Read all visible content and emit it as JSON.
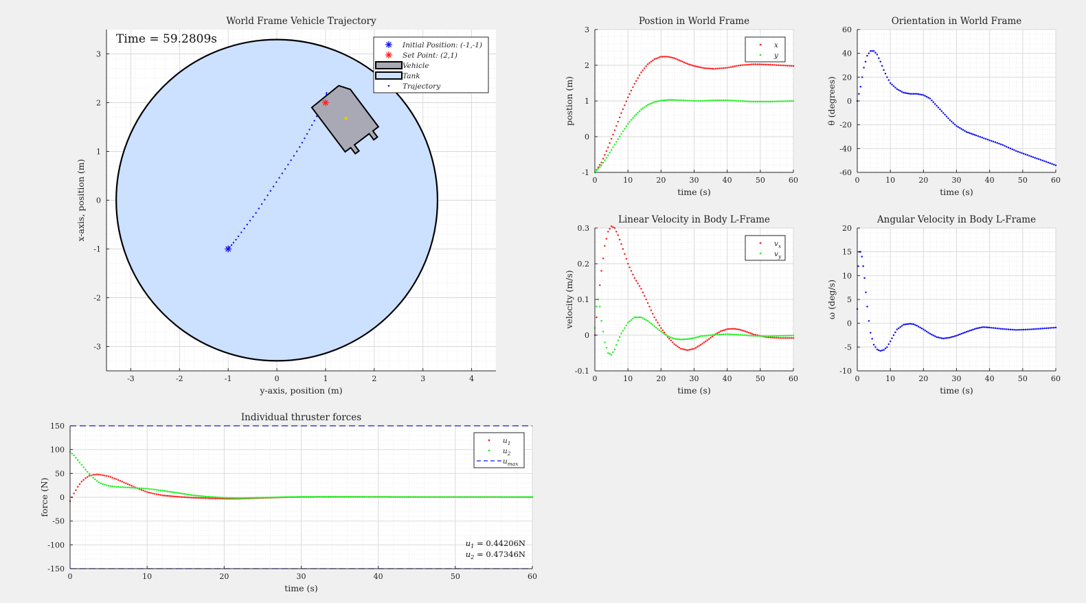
{
  "colors": {
    "figure_bg": "#f0f0f0",
    "axes_bg": "#ffffff",
    "grid_major": "#d7d7d7",
    "grid_minor": "#ebebeb",
    "tank_fill": "#cce0ff",
    "vehicle_fill": "#a9a9b6",
    "red": "#ff1e1e",
    "green": "#22ee22",
    "blue": "#1111ee",
    "setpoint_marker": "#e6c800"
  },
  "chart_data": [
    {
      "id": "trajectory",
      "type": "scatter",
      "title": "World Frame Vehicle Trajectory",
      "xlabel": "y-axis, position (m)",
      "ylabel": "x-axis, position (m)",
      "xlim": [
        -3.5,
        4.5
      ],
      "ylim": [
        -3.5,
        3.5
      ],
      "xticks": [
        -3,
        -2,
        -1,
        0,
        1,
        2,
        3,
        4
      ],
      "yticks": [
        -3,
        -2,
        -1,
        0,
        1,
        2,
        3
      ],
      "grid": true,
      "time_annotation": "Time = 59.2809s",
      "tank": {
        "center": [
          0,
          0
        ],
        "radius": 3.3
      },
      "initial_position": [
        -1,
        -1
      ],
      "set_point": [
        1,
        2
      ],
      "trajectory": {
        "x": [
          -1.0,
          -0.97,
          -0.93,
          -0.89,
          -0.84,
          -0.79,
          -0.73,
          -0.67,
          -0.61,
          -0.55,
          -0.49,
          -0.43,
          -0.37,
          -0.31,
          -0.25,
          -0.19,
          -0.13,
          -0.07,
          -0.01,
          0.05,
          0.11,
          0.17,
          0.23,
          0.29,
          0.35,
          0.41,
          0.47,
          0.52,
          0.57,
          0.62,
          0.67,
          0.72,
          0.77,
          0.82,
          0.87,
          0.92,
          0.96,
          0.99,
          1.01,
          1.02,
          1.02,
          1.01,
          1.0
        ],
        "y": [
          -1.0,
          -0.96,
          -0.92,
          -0.87,
          -0.81,
          -0.74,
          -0.66,
          -0.58,
          -0.5,
          -0.42,
          -0.34,
          -0.26,
          -0.17,
          -0.08,
          0.01,
          0.1,
          0.19,
          0.28,
          0.37,
          0.46,
          0.55,
          0.64,
          0.73,
          0.82,
          0.91,
          1.0,
          1.09,
          1.18,
          1.27,
          1.36,
          1.45,
          1.54,
          1.63,
          1.72,
          1.81,
          1.9,
          1.98,
          2.05,
          2.12,
          2.17,
          2.2,
          2.1,
          2.0
        ]
      },
      "vehicle": {
        "center": [
          1.42,
          1.68
        ],
        "heading_deg": -53,
        "length": 1.2,
        "width": 0.95
      },
      "legend": {
        "placement": "top-right",
        "entries": [
          "Initial Position: (-1,-1)",
          "Set Point: (2,1)",
          "Vehicle",
          "Tank",
          "Trajectory"
        ]
      }
    },
    {
      "id": "position",
      "type": "scatter",
      "title": "Postion in World Frame",
      "xlabel": "time (s)",
      "ylabel": "postion (m)",
      "xlim": [
        0,
        60
      ],
      "ylim": [
        -1,
        3
      ],
      "xticks": [
        0,
        10,
        20,
        30,
        40,
        50,
        60
      ],
      "yticks": [
        -1,
        0,
        1,
        2,
        3
      ],
      "grid": true,
      "legend": {
        "placement": "top-right"
      },
      "series": [
        {
          "name": "x",
          "color": "red",
          "t": [
            0,
            2,
            4,
            6,
            8,
            10,
            12,
            14,
            16,
            18,
            20,
            22,
            24,
            26,
            28,
            30,
            33,
            36,
            40,
            44,
            48,
            52,
            56,
            60
          ],
          "v": [
            -1.0,
            -0.72,
            -0.3,
            0.18,
            0.66,
            1.1,
            1.48,
            1.8,
            2.03,
            2.17,
            2.24,
            2.24,
            2.2,
            2.12,
            2.04,
            1.98,
            1.92,
            1.9,
            1.93,
            2.0,
            2.03,
            2.02,
            2.0,
            1.98
          ]
        },
        {
          "name": "y",
          "color": "green",
          "t": [
            0,
            2,
            4,
            6,
            8,
            10,
            12,
            14,
            16,
            18,
            20,
            22,
            24,
            28,
            32,
            36,
            40,
            44,
            48,
            52,
            56,
            60
          ],
          "v": [
            -1.0,
            -0.8,
            -0.52,
            -0.22,
            0.08,
            0.36,
            0.58,
            0.76,
            0.89,
            0.97,
            1.01,
            1.03,
            1.03,
            1.01,
            1.0,
            1.02,
            1.02,
            1.0,
            0.98,
            0.98,
            0.99,
            1.0
          ]
        }
      ]
    },
    {
      "id": "orientation",
      "type": "scatter",
      "title": "Orientation in World Frame",
      "xlabel": "time (s)",
      "ylabel": "θ (degrees)",
      "xlim": [
        0,
        60
      ],
      "ylim": [
        -60,
        60
      ],
      "xticks": [
        0,
        10,
        20,
        30,
        40,
        50,
        60
      ],
      "yticks": [
        -60,
        -40,
        -20,
        0,
        20,
        40,
        60
      ],
      "grid": true,
      "series": [
        {
          "name": "",
          "color": "blue",
          "t": [
            0,
            1,
            2,
            3,
            4,
            5,
            6,
            7,
            8,
            9,
            10,
            12,
            14,
            16,
            18,
            20,
            22,
            24,
            26,
            28,
            30,
            33,
            36,
            40,
            44,
            48,
            52,
            56,
            60
          ],
          "v": [
            0,
            12,
            28,
            38,
            42,
            42,
            39,
            33,
            26,
            20,
            15,
            10,
            7,
            6,
            6,
            5,
            2,
            -4,
            -10,
            -16,
            -21,
            -26,
            -29,
            -33,
            -37,
            -42,
            -46,
            -50,
            -54
          ]
        }
      ]
    },
    {
      "id": "linear_velocity",
      "type": "scatter",
      "title": "Linear Velocity in Body L-Frame",
      "xlabel": "time (s)",
      "ylabel": "velocity (m/s)",
      "xlim": [
        0,
        60
      ],
      "ylim": [
        -0.1,
        0.3
      ],
      "xticks": [
        0,
        10,
        20,
        30,
        40,
        50,
        60
      ],
      "yticks": [
        -0.1,
        0,
        0.1,
        0.2,
        0.3
      ],
      "grid": true,
      "legend": {
        "placement": "top-right"
      },
      "series": [
        {
          "name": "v_x",
          "color": "red",
          "t": [
            0,
            1,
            2,
            3,
            4,
            5,
            6,
            7,
            8,
            10,
            12,
            14,
            16,
            18,
            20,
            22,
            24,
            26,
            28,
            30,
            32,
            34,
            36,
            38,
            40,
            42,
            44,
            46,
            48,
            52,
            56,
            60
          ],
          "v": [
            0,
            0.1,
            0.18,
            0.25,
            0.29,
            0.305,
            0.3,
            0.28,
            0.255,
            0.2,
            0.16,
            0.13,
            0.09,
            0.05,
            0.02,
            -0.005,
            -0.025,
            -0.038,
            -0.042,
            -0.038,
            -0.027,
            -0.014,
            0.0,
            0.011,
            0.017,
            0.018,
            0.015,
            0.009,
            0.002,
            -0.006,
            -0.008,
            -0.008
          ]
        },
        {
          "name": "v_y",
          "color": "green",
          "t": [
            0,
            0.5,
            1,
            1.5,
            2,
            3,
            4,
            5,
            6,
            7,
            8,
            10,
            12,
            14,
            16,
            18,
            20,
            22,
            24,
            26,
            28,
            30,
            32,
            36,
            40,
            44,
            48,
            52,
            56,
            60
          ],
          "v": [
            0.02,
            0.08,
            0.1,
            0.08,
            0.04,
            -0.02,
            -0.05,
            -0.055,
            -0.04,
            -0.015,
            0.005,
            0.035,
            0.05,
            0.05,
            0.04,
            0.025,
            0.01,
            -0.003,
            -0.01,
            -0.012,
            -0.011,
            -0.008,
            -0.003,
            0.001,
            0.003,
            0.001,
            -0.002,
            -0.003,
            -0.002,
            -0.001
          ]
        }
      ]
    },
    {
      "id": "angular_velocity",
      "type": "scatter",
      "title": "Angular Velocity in Body L-Frame",
      "xlabel": "time (s)",
      "ylabel": "ω (deg/s)",
      "xlim": [
        0,
        60
      ],
      "ylim": [
        -10,
        20
      ],
      "xticks": [
        0,
        10,
        20,
        30,
        40,
        50,
        60
      ],
      "yticks": [
        -10,
        -5,
        0,
        5,
        10,
        15,
        20
      ],
      "grid": true,
      "series": [
        {
          "name": "",
          "color": "blue",
          "t": [
            0,
            0.3,
            0.6,
            1,
            1.4,
            1.8,
            2.2,
            2.6,
            3,
            3.5,
            4,
            5,
            6,
            7,
            8,
            9,
            10,
            11,
            12,
            14,
            16,
            17,
            18,
            20,
            22,
            24,
            26,
            28,
            30,
            33,
            36,
            38,
            40,
            44,
            48,
            52,
            56,
            60
          ],
          "v": [
            3,
            12,
            15,
            15,
            14,
            12,
            9.5,
            6.5,
            3.5,
            0.5,
            -2,
            -4.5,
            -5.5,
            -5.8,
            -5.6,
            -5,
            -3.8,
            -2.5,
            -1.3,
            -0.3,
            -0.1,
            -0.2,
            -0.5,
            -1.3,
            -2.2,
            -2.9,
            -3.2,
            -3,
            -2.6,
            -1.8,
            -1.1,
            -0.8,
            -0.9,
            -1.2,
            -1.4,
            -1.3,
            -1.1,
            -0.9
          ]
        }
      ]
    },
    {
      "id": "thruster_forces",
      "type": "scatter",
      "title": "Individual thruster forces",
      "xlabel": "time (s)",
      "ylabel": "force (N)",
      "xlim": [
        0,
        60
      ],
      "ylim": [
        -150,
        150
      ],
      "xticks": [
        0,
        10,
        20,
        30,
        40,
        50,
        60
      ],
      "yticks": [
        -150,
        -100,
        -50,
        0,
        50,
        100,
        150
      ],
      "grid": true,
      "legend": {
        "placement": "top-right"
      },
      "u_max": 150,
      "annotations": [
        "u_1 = 0.44206N",
        "u_2 = 0.47346N"
      ],
      "series": [
        {
          "name": "u_1",
          "color": "red",
          "t": [
            0,
            0.5,
            1,
            1.5,
            2,
            2.5,
            3,
            3.5,
            4,
            5,
            6,
            7,
            8,
            9,
            10,
            11,
            12,
            14,
            16,
            18,
            20,
            22,
            24,
            26,
            28,
            30,
            34,
            38,
            42,
            46,
            50,
            54,
            58,
            60
          ],
          "v": [
            -8,
            8,
            22,
            33,
            40,
            45,
            47,
            48,
            47,
            44,
            38,
            31,
            24,
            17,
            11,
            7,
            4,
            1,
            -1,
            -2,
            -3,
            -3,
            -2,
            -1,
            0,
            0.5,
            0.8,
            0.8,
            0.6,
            0.5,
            0.5,
            0.5,
            0.4,
            0.4
          ]
        },
        {
          "name": "u_2",
          "color": "green",
          "t": [
            0,
            0.5,
            1,
            1.5,
            2,
            2.5,
            3,
            3.5,
            4,
            5,
            6,
            7,
            8,
            9,
            10,
            11,
            12,
            14,
            16,
            18,
            20,
            22,
            24,
            26,
            28,
            30,
            34,
            38,
            42,
            46,
            50,
            54,
            58,
            60
          ],
          "v": [
            95,
            88,
            78,
            68,
            58,
            49,
            41,
            34,
            29,
            24,
            22,
            21,
            20,
            19,
            18,
            16,
            14,
            9,
            4,
            1,
            -1,
            -2,
            -1,
            -0.5,
            0.5,
            1,
            1.2,
            1,
            0.8,
            0.6,
            0.5,
            0.5,
            0.5,
            0.5
          ]
        },
        {
          "name": "u_max",
          "color": "blue",
          "style": "dashed"
        }
      ]
    }
  ]
}
